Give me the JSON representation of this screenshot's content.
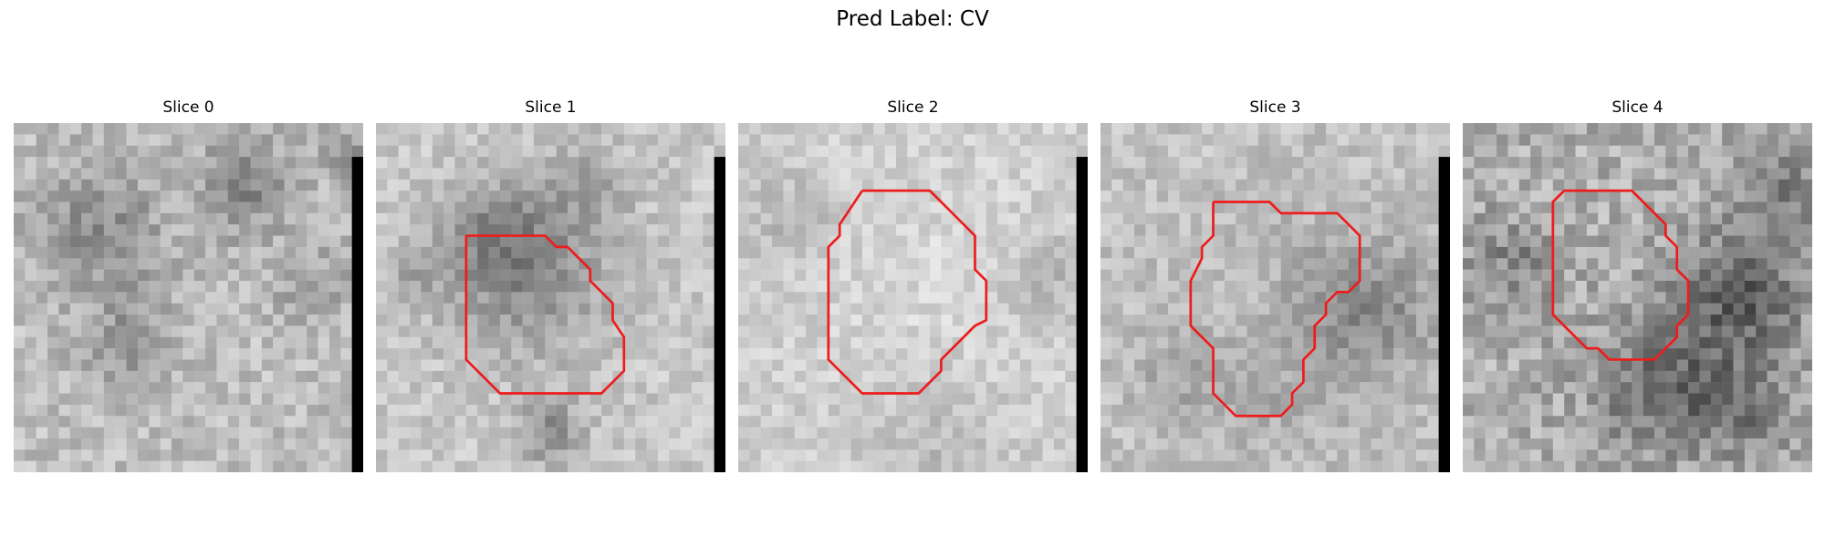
{
  "figure": {
    "title": "Pred Label: CV"
  },
  "colormap": "gray",
  "outline_color": "#ee1c1c",
  "panels": [
    {
      "title": "Slice 0",
      "has_outline": false,
      "black_edge": true
    },
    {
      "title": "Slice 1",
      "has_outline": true,
      "black_edge": true
    },
    {
      "title": "Slice 2",
      "has_outline": true,
      "black_edge": true
    },
    {
      "title": "Slice 3",
      "has_outline": true,
      "black_edge": true
    },
    {
      "title": "Slice 4",
      "has_outline": true,
      "black_edge": false
    }
  ]
}
